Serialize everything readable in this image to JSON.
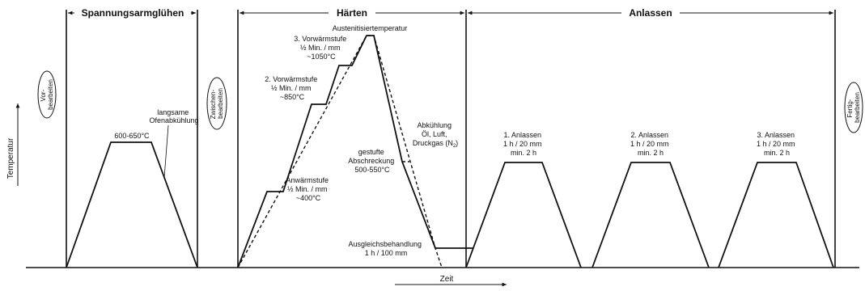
{
  "headers": {
    "spannungsarmgluehen": "Spannungsarmglühen",
    "haerten": "Härten",
    "anlassen": "Anlassen"
  },
  "axes": {
    "y_label": "Temperatur",
    "x_label": "Zeit"
  },
  "side_steps": {
    "vorbearbeiten": [
      "Vor-",
      "bearbeiten"
    ],
    "zwischenbearbeiten": [
      "Zwischen-",
      "bearbeiten"
    ],
    "fertigbearbeiten": [
      "Fertig-",
      "bearbeiten"
    ]
  },
  "stress_relief": {
    "temp": "600-650°C",
    "cooling": [
      "langsame",
      "Ofenabkühlung"
    ]
  },
  "hardening": {
    "stage1": [
      "Anwärmstufe",
      "½ Min. / mm",
      "~400°C"
    ],
    "stage2": [
      "2. Vorwärmstufe",
      "½ Min. / mm",
      "~850°C"
    ],
    "stage3": [
      "3. Vorwärmstufe",
      "½ Min. / mm",
      "~1050°C"
    ],
    "austenit": "Austenitisiertemperatur",
    "cooling": [
      "Abkühlung",
      "Öl, Luft,",
      "Druckgas (N",
      "2",
      ")"
    ],
    "stepped": [
      "gestufte",
      "Abschreckung",
      "500-550°C"
    ],
    "equalize": [
      "Ausgleichsbehandlung",
      "1 h / 100 mm"
    ]
  },
  "tempering": [
    {
      "title": "1. Anlassen",
      "rate": "1 h / 20 mm",
      "min": "min. 2 h"
    },
    {
      "title": "2. Anlassen",
      "rate": "1 h / 20 mm",
      "min": "min. 2 h"
    },
    {
      "title": "3. Anlassen",
      "rate": "1 h / 20 mm",
      "min": "min. 2 h"
    }
  ]
}
